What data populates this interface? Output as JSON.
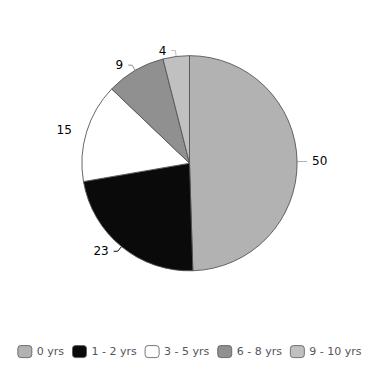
{
  "chart_data": {
    "type": "pie",
    "categories": [
      "0 yrs",
      "1 - 2 yrs",
      "3 - 5 yrs",
      "6 - 8 yrs",
      "9 - 10 yrs"
    ],
    "values": [
      50,
      23,
      15,
      9,
      4
    ],
    "colors": [
      "#b2b2b2",
      "#0a0a0a",
      "#ffffff",
      "#909090",
      "#c0c0c0"
    ],
    "data_labels": true,
    "legend": "bottom"
  }
}
